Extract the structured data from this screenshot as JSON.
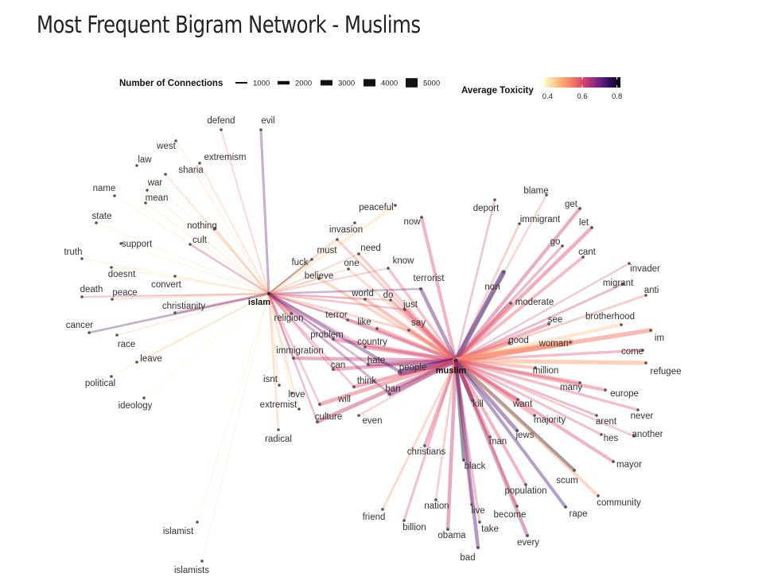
{
  "title": "Most Frequent Bigram Network - Muslims",
  "legend": {
    "connections_title": "Number of Connections",
    "connections": [
      1000,
      2000,
      3000,
      4000,
      5000
    ],
    "toxicity_title": "Average Toxicity",
    "toxicity_ticks": [
      "0.4",
      "0.6",
      "0.8"
    ],
    "toxicity_range": [
      0.38,
      0.82
    ],
    "toxicity_colors": [
      "#fcfdbf",
      "#fec287",
      "#fb8861",
      "#de4968",
      "#8c2981",
      "#3b0f70",
      "#000004"
    ]
  },
  "chart_data": {
    "type": "network",
    "hubs": [
      {
        "id": "islam",
        "label": "islam"
      },
      {
        "id": "muslim",
        "label": "muslim"
      }
    ],
    "nodes": [
      {
        "label": "defend",
        "hub": "islam",
        "connections": 800,
        "toxicity": 0.55
      },
      {
        "label": "evil",
        "hub": "islam",
        "connections": 1600,
        "toxicity": 0.72
      },
      {
        "label": "west",
        "hub": "islam",
        "connections": 400,
        "toxicity": 0.45
      },
      {
        "label": "extremism",
        "hub": "islam",
        "connections": 700,
        "toxicity": 0.5
      },
      {
        "label": "law",
        "hub": "islam",
        "connections": 500,
        "toxicity": 0.42
      },
      {
        "label": "sharia",
        "hub": "islam",
        "connections": 900,
        "toxicity": 0.48
      },
      {
        "label": "war",
        "hub": "islam",
        "connections": 500,
        "toxicity": 0.45
      },
      {
        "label": "name",
        "hub": "islam",
        "connections": 600,
        "toxicity": 0.42
      },
      {
        "label": "mean",
        "hub": "islam",
        "connections": 500,
        "toxicity": 0.44
      },
      {
        "label": "state",
        "hub": "islam",
        "connections": 400,
        "toxicity": 0.43
      },
      {
        "label": "nothing",
        "hub": "islam",
        "connections": 1400,
        "toxicity": 0.5
      },
      {
        "label": "cult",
        "hub": "islam",
        "connections": 1200,
        "toxicity": 0.62
      },
      {
        "label": "support",
        "hub": "islam",
        "connections": 500,
        "toxicity": 0.42
      },
      {
        "label": "truth",
        "hub": "islam",
        "connections": 700,
        "toxicity": 0.42
      },
      {
        "label": "doesnt",
        "hub": "islam",
        "connections": 500,
        "toxicity": 0.44
      },
      {
        "label": "convert",
        "hub": "islam",
        "connections": 600,
        "toxicity": 0.44
      },
      {
        "label": "death",
        "hub": "islam",
        "connections": 900,
        "toxicity": 0.62
      },
      {
        "label": "peace",
        "hub": "islam",
        "connections": 1300,
        "toxicity": 0.46
      },
      {
        "label": "christianity",
        "hub": "islam",
        "connections": 1500,
        "toxicity": 0.58
      },
      {
        "label": "cancer",
        "hub": "islam",
        "connections": 1300,
        "toxicity": 0.74
      },
      {
        "label": "race",
        "hub": "islam",
        "connections": 500,
        "toxicity": 0.48
      },
      {
        "label": "leave",
        "hub": "islam",
        "connections": 800,
        "toxicity": 0.47
      },
      {
        "label": "political",
        "hub": "islam",
        "connections": 600,
        "toxicity": 0.42
      },
      {
        "label": "ideology",
        "hub": "islam",
        "connections": 700,
        "toxicity": 0.4
      },
      {
        "label": "peaceful",
        "hub": "islam",
        "connections": 2200,
        "toxicity": 0.42
      },
      {
        "label": "invasion",
        "hub": "islam",
        "connections": 800,
        "toxicity": 0.5
      },
      {
        "label": "fuck",
        "hub": "islam",
        "connections": 800,
        "toxicity": 0.8
      },
      {
        "label": "religion",
        "hub": "islam",
        "connections": 3000,
        "toxicity": 0.5
      },
      {
        "label": "isnt",
        "hub": "islam",
        "connections": 1000,
        "toxicity": 0.45
      },
      {
        "label": "love",
        "hub": "islam",
        "connections": 800,
        "toxicity": 0.45
      },
      {
        "label": "extremist",
        "hub": "islam",
        "connections": 700,
        "toxicity": 0.52
      },
      {
        "label": "radical",
        "hub": "islam",
        "connections": 1300,
        "toxicity": 0.5
      },
      {
        "label": "islamist",
        "hub": "islam",
        "connections": 500,
        "toxicity": 0.42
      },
      {
        "label": "islamists",
        "hub": "islam",
        "connections": 400,
        "toxicity": 0.42
      },
      {
        "label": "now",
        "hub": "muslim",
        "connections": 2300,
        "toxicity": 0.6
      },
      {
        "label": "must",
        "hub": "both",
        "connections": 1500,
        "toxicity": 0.55
      },
      {
        "label": "need",
        "hub": "both",
        "connections": 1800,
        "toxicity": 0.55
      },
      {
        "label": "know",
        "hub": "both",
        "connections": 1800,
        "toxicity": 0.58
      },
      {
        "label": "one",
        "hub": "both",
        "connections": 1600,
        "toxicity": 0.5
      },
      {
        "label": "believe",
        "hub": "both",
        "connections": 2100,
        "toxicity": 0.5
      },
      {
        "label": "terrorist",
        "hub": "both",
        "connections": 2600,
        "toxicity": 0.72
      },
      {
        "label": "world",
        "hub": "both",
        "connections": 2400,
        "toxicity": 0.55
      },
      {
        "label": "do",
        "hub": "both",
        "connections": 2400,
        "toxicity": 0.58
      },
      {
        "label": "just",
        "hub": "both",
        "connections": 2800,
        "toxicity": 0.6
      },
      {
        "label": "terror",
        "hub": "both",
        "connections": 2200,
        "toxicity": 0.62
      },
      {
        "label": "like",
        "hub": "both",
        "connections": 2800,
        "toxicity": 0.58
      },
      {
        "label": "say",
        "hub": "both",
        "connections": 2600,
        "toxicity": 0.55
      },
      {
        "label": "problem",
        "hub": "both",
        "connections": 2600,
        "toxicity": 0.6
      },
      {
        "label": "country",
        "hub": "both",
        "connections": 2700,
        "toxicity": 0.6
      },
      {
        "label": "immigration",
        "hub": "both",
        "connections": 2400,
        "toxicity": 0.62
      },
      {
        "label": "can",
        "hub": "both",
        "connections": 2600,
        "toxicity": 0.6
      },
      {
        "label": "hate",
        "hub": "both",
        "connections": 3000,
        "toxicity": 0.66
      },
      {
        "label": "people",
        "hub": "both",
        "connections": 5000,
        "toxicity": 0.72
      },
      {
        "label": "think",
        "hub": "both",
        "connections": 2600,
        "toxicity": 0.6
      },
      {
        "label": "ban",
        "hub": "both",
        "connections": 3600,
        "toxicity": 0.68
      },
      {
        "label": "will",
        "hub": "both",
        "connections": 2800,
        "toxicity": 0.58
      },
      {
        "label": "culture",
        "hub": "both",
        "connections": 2800,
        "toxicity": 0.62
      },
      {
        "label": "even",
        "hub": "muslim",
        "connections": 1200,
        "toxicity": 0.55
      },
      {
        "label": "deport",
        "hub": "muslim",
        "connections": 1200,
        "toxicity": 0.62
      },
      {
        "label": "blame",
        "hub": "muslim",
        "connections": 1100,
        "toxicity": 0.55
      },
      {
        "label": "get",
        "hub": "muslim",
        "connections": 2400,
        "toxicity": 0.62
      },
      {
        "label": "immigrant",
        "hub": "muslim",
        "connections": 1400,
        "toxicity": 0.55
      },
      {
        "label": "go",
        "hub": "muslim",
        "connections": 1800,
        "toxicity": 0.62
      },
      {
        "label": "let",
        "hub": "muslim",
        "connections": 2600,
        "toxicity": 0.6
      },
      {
        "label": "cant",
        "hub": "muslim",
        "connections": 2200,
        "toxicity": 0.58
      },
      {
        "label": "non",
        "hub": "muslim",
        "connections": 3600,
        "toxicity": 0.75
      },
      {
        "label": "invader",
        "hub": "muslim",
        "connections": 1000,
        "toxicity": 0.62
      },
      {
        "label": "migrant",
        "hub": "muslim",
        "connections": 1500,
        "toxicity": 0.62
      },
      {
        "label": "anti",
        "hub": "muslim",
        "connections": 1400,
        "toxicity": 0.56
      },
      {
        "label": "moderate",
        "hub": "muslim",
        "connections": 2800,
        "toxicity": 0.58
      },
      {
        "label": "brotherhood",
        "hub": "muslim",
        "connections": 2400,
        "toxicity": 0.45
      },
      {
        "label": "see",
        "hub": "muslim",
        "connections": 2400,
        "toxicity": 0.6
      },
      {
        "label": "good",
        "hub": "muslim",
        "connections": 3400,
        "toxicity": 0.55
      },
      {
        "label": "woman",
        "hub": "muslim",
        "connections": 4800,
        "toxicity": 0.5
      },
      {
        "label": "im",
        "hub": "muslim",
        "connections": 3200,
        "toxicity": 0.55
      },
      {
        "label": "come",
        "hub": "muslim",
        "connections": 1800,
        "toxicity": 0.6
      },
      {
        "label": "refugee",
        "hub": "muslim",
        "connections": 3000,
        "toxicity": 0.5
      },
      {
        "label": "million",
        "hub": "muslim",
        "connections": 2200,
        "toxicity": 0.55
      },
      {
        "label": "many",
        "hub": "muslim",
        "connections": 2200,
        "toxicity": 0.6
      },
      {
        "label": "europe",
        "hub": "muslim",
        "connections": 2400,
        "toxicity": 0.58
      },
      {
        "label": "want",
        "hub": "muslim",
        "connections": 2200,
        "toxicity": 0.6
      },
      {
        "label": "never",
        "hub": "muslim",
        "connections": 1700,
        "toxicity": 0.6
      },
      {
        "label": "kill",
        "hub": "muslim",
        "connections": 3000,
        "toxicity": 0.82
      },
      {
        "label": "majority",
        "hub": "muslim",
        "connections": 2400,
        "toxicity": 0.58
      },
      {
        "label": "arent",
        "hub": "muslim",
        "connections": 1500,
        "toxicity": 0.62
      },
      {
        "label": "jews",
        "hub": "muslim",
        "connections": 2700,
        "toxicity": 0.72
      },
      {
        "label": "hes",
        "hub": "muslim",
        "connections": 1500,
        "toxicity": 0.6
      },
      {
        "label": "another",
        "hub": "muslim",
        "connections": 1300,
        "toxicity": 0.58
      },
      {
        "label": "man",
        "hub": "muslim",
        "connections": 2300,
        "toxicity": 0.6
      },
      {
        "label": "christians",
        "hub": "muslim",
        "connections": 2300,
        "toxicity": 0.6
      },
      {
        "label": "black",
        "hub": "muslim",
        "connections": 2400,
        "toxicity": 0.8
      },
      {
        "label": "mayor",
        "hub": "muslim",
        "connections": 2300,
        "toxicity": 0.6
      },
      {
        "label": "scum",
        "hub": "muslim",
        "connections": 2300,
        "toxicity": 0.8
      },
      {
        "label": "population",
        "hub": "muslim",
        "connections": 2200,
        "toxicity": 0.6
      },
      {
        "label": "community",
        "hub": "muslim",
        "connections": 2200,
        "toxicity": 0.5
      },
      {
        "label": "nation",
        "hub": "muslim",
        "connections": 1400,
        "toxicity": 0.55
      },
      {
        "label": "friend",
        "hub": "muslim",
        "connections": 1400,
        "toxicity": 0.52
      },
      {
        "label": "live",
        "hub": "muslim",
        "connections": 1800,
        "toxicity": 0.6
      },
      {
        "label": "become",
        "hub": "muslim",
        "connections": 1800,
        "toxicity": 0.6
      },
      {
        "label": "rape",
        "hub": "muslim",
        "connections": 2200,
        "toxicity": 0.74
      },
      {
        "label": "billion",
        "hub": "muslim",
        "connections": 1500,
        "toxicity": 0.6
      },
      {
        "label": "take",
        "hub": "muslim",
        "connections": 1500,
        "toxicity": 0.6
      },
      {
        "label": "obama",
        "hub": "muslim",
        "connections": 2600,
        "toxicity": 0.62
      },
      {
        "label": "every",
        "hub": "muslim",
        "connections": 2600,
        "toxicity": 0.64
      },
      {
        "label": "bad",
        "hub": "muslim",
        "connections": 2600,
        "toxicity": 0.72
      }
    ]
  }
}
